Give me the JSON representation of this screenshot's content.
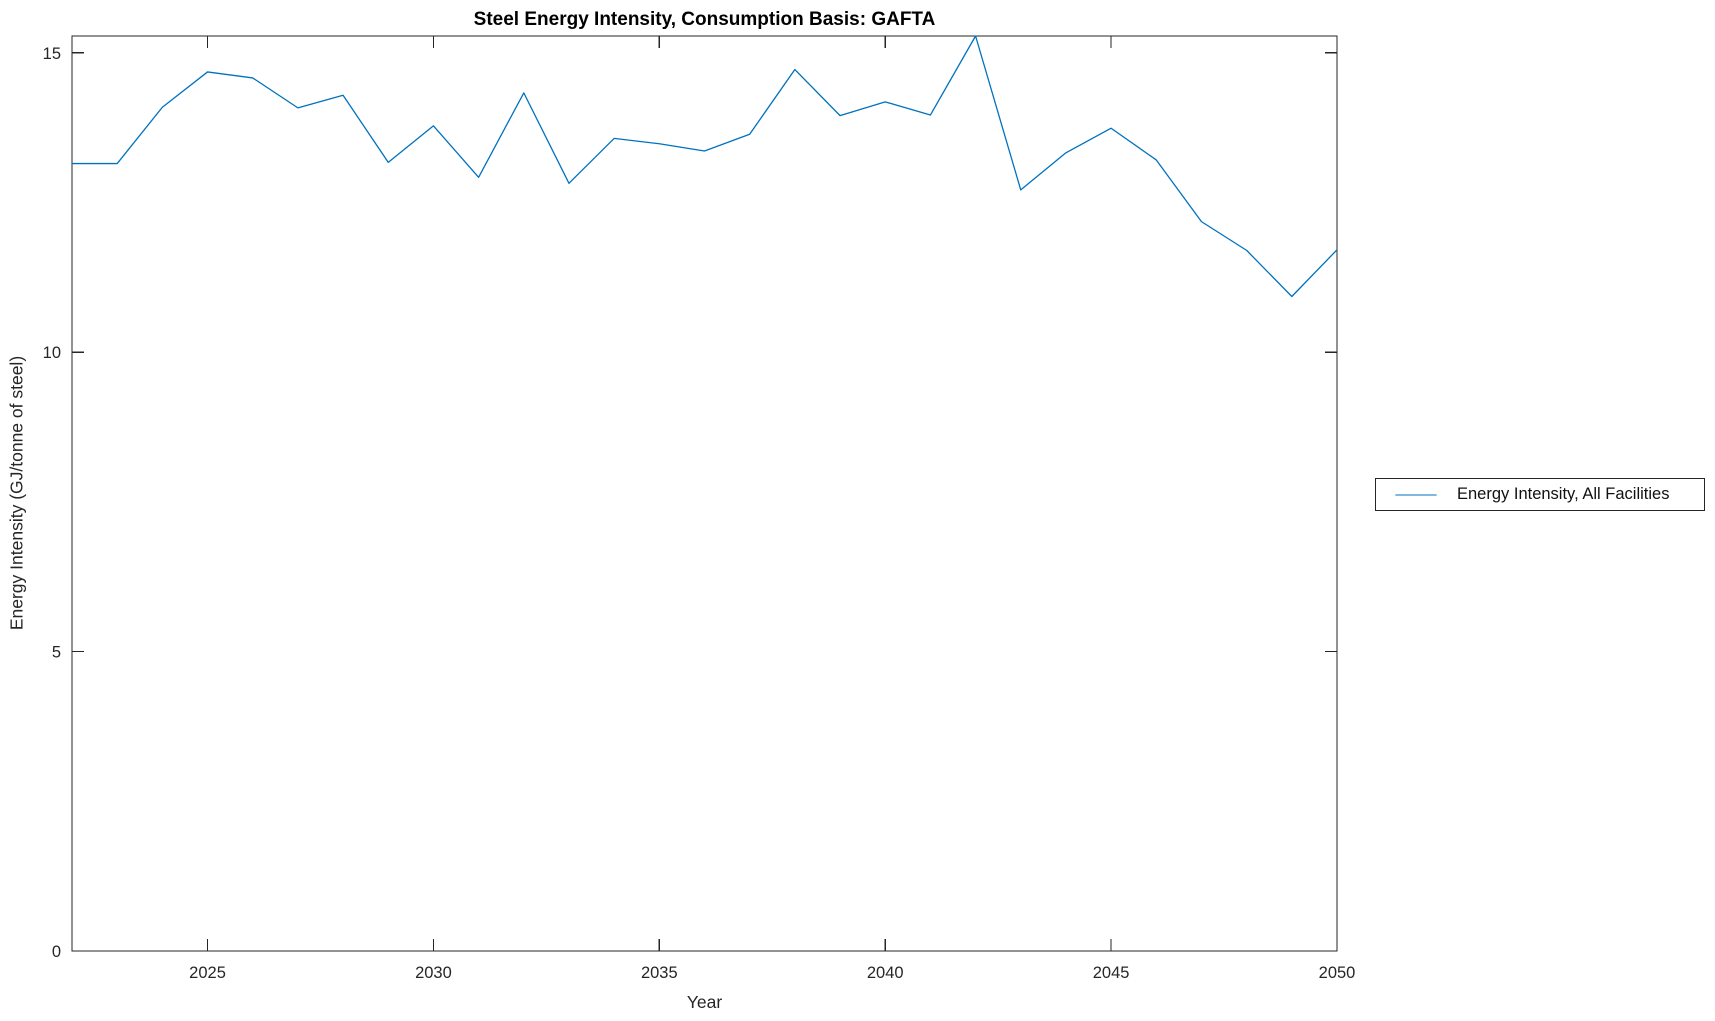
{
  "figure": {
    "background": "#ffffff",
    "axis_color": "#262626",
    "title_color": "#000000"
  },
  "chart_data": {
    "type": "line",
    "title": "Steel Energy Intensity, Consumption Basis: GAFTA",
    "xlabel": "Year",
    "ylabel": "Energy Intensity (GJ/tonne of steel)",
    "x": [
      2022,
      2023,
      2024,
      2025,
      2026,
      2027,
      2028,
      2029,
      2030,
      2031,
      2032,
      2033,
      2034,
      2035,
      2036,
      2037,
      2038,
      2039,
      2040,
      2041,
      2042,
      2043,
      2044,
      2045,
      2046,
      2047,
      2048,
      2049,
      2050
    ],
    "series": [
      {
        "name": "Energy Intensity, All Facilities",
        "color": "#0072BD",
        "values": [
          13.15,
          13.15,
          14.09,
          14.68,
          14.58,
          14.08,
          14.29,
          13.17,
          13.78,
          12.92,
          14.33,
          12.82,
          13.57,
          13.48,
          13.36,
          13.64,
          14.72,
          13.95,
          14.18,
          13.96,
          15.28,
          12.71,
          13.33,
          13.74,
          13.21,
          12.18,
          11.7,
          10.93,
          11.71
        ]
      }
    ],
    "xlim": [
      2022,
      2050
    ],
    "ylim": [
      0,
      15.28
    ],
    "x_ticks": [
      2025,
      2030,
      2035,
      2040,
      2045,
      2050
    ],
    "y_ticks": [
      0,
      5,
      10,
      15
    ],
    "grid": false,
    "legend_position": "right-outside"
  },
  "legend": {
    "label": "Energy Intensity, All Facilities"
  }
}
